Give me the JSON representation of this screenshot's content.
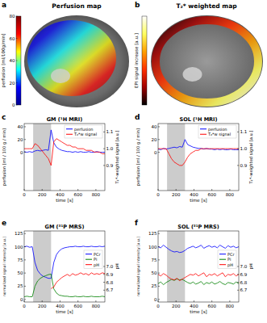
{
  "chart_data": [
    {
      "type": "image",
      "panel": "a",
      "title": "Perfusion map",
      "zlabel": "perfusion [ml/100g/min]",
      "zlim": [
        0,
        80
      ],
      "zticks": [
        0,
        20,
        40,
        60,
        80
      ],
      "colors": [
        "#00008f",
        "#0000ff",
        "#00ffff",
        "#ffff00",
        "#ff0000",
        "#800000"
      ]
    },
    {
      "type": "image",
      "panel": "b",
      "title": "T₂* weighted map",
      "zlabel": "EPI signal increase [a.u.]",
      "tick_labels": false,
      "colors": [
        "#000000",
        "#a00000",
        "#ff3000",
        "#ffa000",
        "#ffff60",
        "#ffffff"
      ]
    },
    {
      "type": "line",
      "panel": "c",
      "title": "GM (¹H MRI)",
      "xlabel": "time [s]",
      "ylabel": "perfusion [ml / 100 g / min]",
      "y2label": "T₂*-weighted signal [a.u.]",
      "x": [
        0,
        30,
        60,
        90,
        120,
        150,
        180,
        210,
        240,
        270,
        300,
        330,
        360,
        390,
        420,
        450,
        480,
        510,
        540,
        570,
        600,
        630,
        660,
        690,
        720,
        750,
        780,
        810,
        840,
        870,
        900
      ],
      "xlim": [
        0,
        900
      ],
      "xticks": [
        0,
        200,
        400,
        600,
        800
      ],
      "ylim": [
        -60,
        45
      ],
      "yticks": [
        0,
        20,
        40
      ],
      "y2lim": [
        0.75,
        1.15
      ],
      "y2ticks": [
        0.9,
        {
          "value": 1,
          "label": "1.0"
        },
        1.1
      ],
      "span": [
        100,
        300
      ],
      "legend": "upper right",
      "series": [
        {
          "name": "perfusion",
          "color": "#0000ff",
          "values": [
            1,
            0,
            1,
            0,
            2,
            3,
            2,
            3,
            4,
            3,
            35,
            15,
            8,
            5,
            3,
            2,
            1,
            1,
            0,
            1,
            0,
            1,
            0,
            0,
            1,
            0,
            0,
            1,
            0,
            0,
            0
          ]
        },
        {
          "name": "T₂*w signal",
          "color": "#ff0000",
          "axis": "y2",
          "values": [
            1,
            1,
            1,
            1,
            1.03,
            1.02,
            1,
            0.98,
            0.96,
            0.94,
            0.9,
            1.04,
            1.06,
            1.05,
            1.04,
            1.03,
            1.02,
            1.02,
            1.01,
            1.01,
            1,
            1,
            1,
            0.99,
            0.99,
            0.99,
            0.98,
            0.98,
            0.98,
            0.97,
            0.97
          ]
        }
      ]
    },
    {
      "type": "line",
      "panel": "d",
      "title": "SOL (¹H MRI)",
      "xlabel": "time [s]",
      "ylabel": "perfusion [ml / 100 g / min]",
      "y2label": "T₂*-weighted signal [a.u.]",
      "x": [
        0,
        30,
        60,
        90,
        120,
        150,
        180,
        210,
        240,
        270,
        300,
        330,
        360,
        390,
        420,
        450,
        480,
        510,
        540,
        570,
        600,
        630,
        660,
        690,
        720,
        750,
        780,
        810,
        840,
        870,
        900
      ],
      "xlim": [
        0,
        900
      ],
      "xticks": [
        0,
        200,
        400,
        600,
        800
      ],
      "ylim": [
        -60,
        45
      ],
      "yticks": [
        0,
        20,
        40
      ],
      "y2lim": [
        0.75,
        1.15
      ],
      "y2ticks": [
        0.9,
        {
          "value": 1,
          "label": "1.0"
        },
        1.1
      ],
      "span": [
        100,
        300
      ],
      "legend": "upper right",
      "series": [
        {
          "name": "perfusion",
          "color": "#0000ff",
          "values": [
            5,
            4,
            6,
            5,
            6,
            7,
            8,
            7,
            9,
            8,
            20,
            12,
            10,
            8,
            7,
            6,
            6,
            5,
            6,
            5,
            5,
            4,
            5,
            4,
            5,
            4,
            4,
            5,
            4,
            4,
            4
          ]
        },
        {
          "name": "T₂*w signal",
          "color": "#ff0000",
          "axis": "y2",
          "values": [
            1,
            1,
            1,
            1,
            0.97,
            0.94,
            0.92,
            0.91,
            0.9,
            0.9,
            0.92,
            0.95,
            0.97,
            0.98,
            0.99,
            0.99,
            1,
            1,
            1,
            1,
            1,
            1,
            1,
            1,
            1,
            1,
            1,
            1,
            1,
            1,
            1
          ]
        }
      ]
    },
    {
      "type": "line",
      "panel": "e",
      "title": "GM (³¹P MRS)",
      "xlabel": "time [s]",
      "ylabel": "normalized signal intensity [a.u.]",
      "y2label": "pH",
      "x": [
        0,
        30,
        60,
        90,
        120,
        150,
        180,
        210,
        240,
        270,
        300,
        330,
        360,
        390,
        420,
        450,
        480,
        510,
        540,
        570,
        600,
        630,
        660,
        690,
        720,
        750,
        780,
        810,
        840,
        870,
        900
      ],
      "xlim": [
        0,
        900
      ],
      "xticks": [
        0,
        200,
        400,
        600,
        800
      ],
      "ylim": [
        -5,
        130
      ],
      "yticks": [
        0,
        25,
        50,
        75,
        100,
        125
      ],
      "y2lim": [
        6.55,
        7.45
      ],
      "y2ticks": [
        6.7,
        6.8,
        6.9,
        {
          "value": 7,
          "label": "7.0"
        }
      ],
      "span": [
        100,
        300
      ],
      "legend": "right",
      "series": [
        {
          "name": "PCr",
          "color": "#0000ff",
          "values": [
            100,
            101,
            99,
            100,
            70,
            55,
            48,
            44,
            42,
            40,
            40,
            70,
            85,
            92,
            96,
            98,
            99,
            100,
            100,
            101,
            100,
            100,
            101,
            100,
            100,
            101,
            100,
            100,
            101,
            100,
            101
          ]
        },
        {
          "name": "Pi",
          "color": "#008000",
          "values": [
            5,
            6,
            5,
            5,
            25,
            35,
            40,
            43,
            45,
            47,
            48,
            20,
            12,
            8,
            7,
            6,
            6,
            5,
            5,
            6,
            5,
            5,
            6,
            5,
            5,
            6,
            5,
            5,
            5,
            6,
            5
          ]
        },
        {
          "name": "pH",
          "color": "#ff0000",
          "axis": "y2",
          "values": [
            null,
            null,
            null,
            null,
            null,
            null,
            null,
            null,
            null,
            null,
            6.72,
            6.74,
            6.8,
            6.83,
            6.86,
            6.88,
            6.9,
            6.88,
            6.91,
            6.89,
            6.9,
            6.92,
            6.9,
            6.91,
            6.89,
            6.92,
            6.9,
            6.91,
            6.9,
            6.92,
            6.91
          ]
        }
      ]
    },
    {
      "type": "line",
      "panel": "f",
      "title": "SOL (³¹P MRS)",
      "xlabel": "time [s]",
      "ylabel": "normalized signal intensity [a.u.]",
      "y2label": "pH",
      "x": [
        0,
        30,
        60,
        90,
        120,
        150,
        180,
        210,
        240,
        270,
        300,
        330,
        360,
        390,
        420,
        450,
        480,
        510,
        540,
        570,
        600,
        630,
        660,
        690,
        720,
        750,
        780,
        810,
        840,
        870,
        900
      ],
      "xlim": [
        0,
        900
      ],
      "xticks": [
        0,
        200,
        400,
        600,
        800
      ],
      "ylim": [
        -5,
        130
      ],
      "yticks": [
        0,
        25,
        50,
        75,
        100,
        125
      ],
      "y2lim": [
        6.55,
        7.45
      ],
      "y2ticks": [
        6.7,
        6.8,
        6.9,
        {
          "value": 7,
          "label": "7.0"
        }
      ],
      "span": [
        100,
        300
      ],
      "legend": "right",
      "series": [
        {
          "name": "PCr",
          "color": "#0000ff",
          "values": [
            100,
            98,
            103,
            99,
            95,
            92,
            90,
            91,
            89,
            90,
            93,
            97,
            99,
            101,
            98,
            100,
            103,
            97,
            100,
            102,
            99,
            101,
            98,
            103,
            100,
            97,
            102,
            99,
            101,
            98,
            100
          ]
        },
        {
          "name": "Pi",
          "color": "#008000",
          "values": [
            30,
            33,
            28,
            32,
            35,
            38,
            36,
            39,
            37,
            38,
            35,
            32,
            30,
            33,
            29,
            31,
            34,
            28,
            32,
            30,
            33,
            29,
            31,
            34,
            30,
            28,
            32,
            31,
            29,
            33,
            30
          ]
        },
        {
          "name": "pH",
          "color": "#ff0000",
          "axis": "y2",
          "values": [
            6.9,
            6.88,
            6.91,
            6.89,
            6.86,
            6.84,
            6.83,
            6.85,
            6.82,
            6.84,
            6.86,
            6.88,
            6.9,
            6.89,
            6.91,
            6.88,
            6.9,
            6.92,
            6.87,
            6.9,
            6.89,
            6.91,
            6.88,
            6.9,
            6.92,
            6.87,
            6.9,
            6.89,
            6.91,
            6.88,
            6.9
          ]
        }
      ]
    }
  ]
}
